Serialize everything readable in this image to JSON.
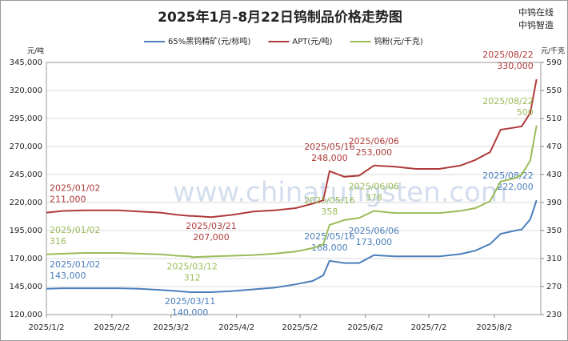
{
  "chart_data": {
    "type": "line",
    "title": "2025年1月-8月22日钨制品价格走势图",
    "brand": [
      "中钨在线",
      "中钨智造"
    ],
    "watermark": "www.chinatungsten.com",
    "y_label": "元/吨",
    "y2_label": "元/千克",
    "x": [
      "2025-01-02",
      "2025-01-10",
      "2025-01-20",
      "2025-02-05",
      "2025-02-15",
      "2025-02-25",
      "2025-03-05",
      "2025-03-11",
      "2025-03-12",
      "2025-03-21",
      "2025-03-31",
      "2025-04-10",
      "2025-04-20",
      "2025-04-30",
      "2025-05-08",
      "2025-05-13",
      "2025-05-16",
      "2025-05-23",
      "2025-05-30",
      "2025-06-06",
      "2025-06-16",
      "2025-06-26",
      "2025-07-07",
      "2025-07-17",
      "2025-07-24",
      "2025-07-31",
      "2025-08-05",
      "2025-08-12",
      "2025-08-15",
      "2025-08-19",
      "2025-08-22"
    ],
    "xlim": [
      "2025-01-02",
      "2025-08-24"
    ],
    "xticks": [
      {
        "value": "2025-01-02",
        "label": "2025/1/2"
      },
      {
        "value": "2025-02-02",
        "label": "2025/2/2"
      },
      {
        "value": "2025-03-02",
        "label": "2025/3/2"
      },
      {
        "value": "2025-04-02",
        "label": "2025/4/2"
      },
      {
        "value": "2025-05-02",
        "label": "2025/5/2"
      },
      {
        "value": "2025-06-02",
        "label": "2025/6/2"
      },
      {
        "value": "2025-07-02",
        "label": "2025/7/2"
      },
      {
        "value": "2025-08-02",
        "label": "2025/8/2"
      }
    ],
    "ylim": [
      120000,
      345000
    ],
    "yticks": [
      {
        "value": 120000,
        "label": "120,000"
      },
      {
        "value": 145000,
        "label": "145,000"
      },
      {
        "value": 170000,
        "label": "170,000"
      },
      {
        "value": 195000,
        "label": "195,000"
      },
      {
        "value": 220000,
        "label": "220,000"
      },
      {
        "value": 245000,
        "label": "245,000"
      },
      {
        "value": 270000,
        "label": "270,000"
      },
      {
        "value": 295000,
        "label": "295,000"
      },
      {
        "value": 320000,
        "label": "320,000"
      },
      {
        "value": 345000,
        "label": "345,000"
      }
    ],
    "y2lim": [
      230,
      590
    ],
    "y2ticks": [
      230,
      270,
      310,
      350,
      390,
      430,
      470,
      510,
      550,
      590
    ],
    "grid": true,
    "series": [
      {
        "name": "65%黑钨精矿(元/标吨)",
        "color": "#4a7ebb",
        "values": [
          143000,
          143500,
          143500,
          143500,
          143000,
          142000,
          141000,
          140000,
          140000,
          140000,
          141000,
          142500,
          144000,
          147000,
          150000,
          155000,
          168000,
          166000,
          166000,
          173000,
          172000,
          172000,
          172000,
          174000,
          177000,
          183000,
          192000,
          195000,
          196000,
          205000,
          222000
        ],
        "value_labels": [
          "143,000",
          null,
          null,
          null,
          null,
          null,
          null,
          "140,000",
          null,
          null,
          null,
          null,
          null,
          null,
          null,
          null,
          "168,000",
          null,
          null,
          "173,000",
          null,
          null,
          null,
          null,
          null,
          null,
          null,
          null,
          null,
          null,
          "222,000"
        ],
        "date_labels": [
          "2025/01/02",
          null,
          null,
          null,
          null,
          null,
          null,
          "2025/03/11",
          null,
          null,
          null,
          null,
          null,
          null,
          null,
          null,
          "2025/05/16",
          null,
          null,
          "2025/06/06",
          null,
          null,
          null,
          null,
          null,
          null,
          null,
          null,
          null,
          null,
          "2025/08/22"
        ]
      },
      {
        "name": "APT(元/吨)",
        "color": "#b03a3a",
        "values": [
          211000,
          212500,
          213000,
          213000,
          212000,
          211000,
          209000,
          208000,
          208000,
          207000,
          209000,
          212000,
          213000,
          215000,
          219000,
          222000,
          248000,
          243000,
          244000,
          253000,
          252000,
          250000,
          250000,
          253000,
          258000,
          265000,
          285000,
          287000,
          288000,
          300000,
          330000
        ],
        "value_labels": [
          "211,000",
          null,
          null,
          null,
          null,
          null,
          null,
          null,
          null,
          "207,000",
          null,
          null,
          null,
          null,
          null,
          null,
          "248,000",
          null,
          null,
          "253,000",
          null,
          null,
          null,
          null,
          null,
          null,
          null,
          null,
          null,
          null,
          "330,000"
        ],
        "date_labels": [
          "2025/01/02",
          null,
          null,
          null,
          null,
          null,
          null,
          null,
          null,
          "2025/03/21",
          null,
          null,
          null,
          null,
          null,
          null,
          "2025/05/16",
          null,
          null,
          "2025/06/06",
          null,
          null,
          null,
          null,
          null,
          null,
          null,
          null,
          null,
          null,
          "2025/08/22"
        ]
      },
      {
        "name": "钨粉(元/千克)",
        "color": "#9bbb59",
        "axis": "y2",
        "values": [
          316,
          317,
          318,
          318,
          317,
          316,
          314,
          313,
          312,
          313,
          314,
          315,
          317,
          320,
          325,
          330,
          358,
          365,
          368,
          378,
          375,
          375,
          375,
          378,
          382,
          392,
          420,
          425,
          430,
          450,
          500
        ],
        "value_labels": [
          "316",
          null,
          null,
          null,
          null,
          null,
          null,
          null,
          "312",
          null,
          null,
          null,
          null,
          null,
          null,
          null,
          "358",
          null,
          null,
          "378",
          null,
          null,
          null,
          null,
          null,
          null,
          null,
          null,
          null,
          null,
          "500"
        ],
        "date_labels": [
          "2025/01/02",
          null,
          null,
          null,
          null,
          null,
          null,
          null,
          "2025/03/12",
          null,
          null,
          null,
          null,
          null,
          null,
          null,
          "2025/05/16",
          null,
          null,
          "2025/06/06",
          null,
          null,
          null,
          null,
          null,
          null,
          null,
          null,
          null,
          null,
          "2025/08/22"
        ]
      }
    ]
  }
}
